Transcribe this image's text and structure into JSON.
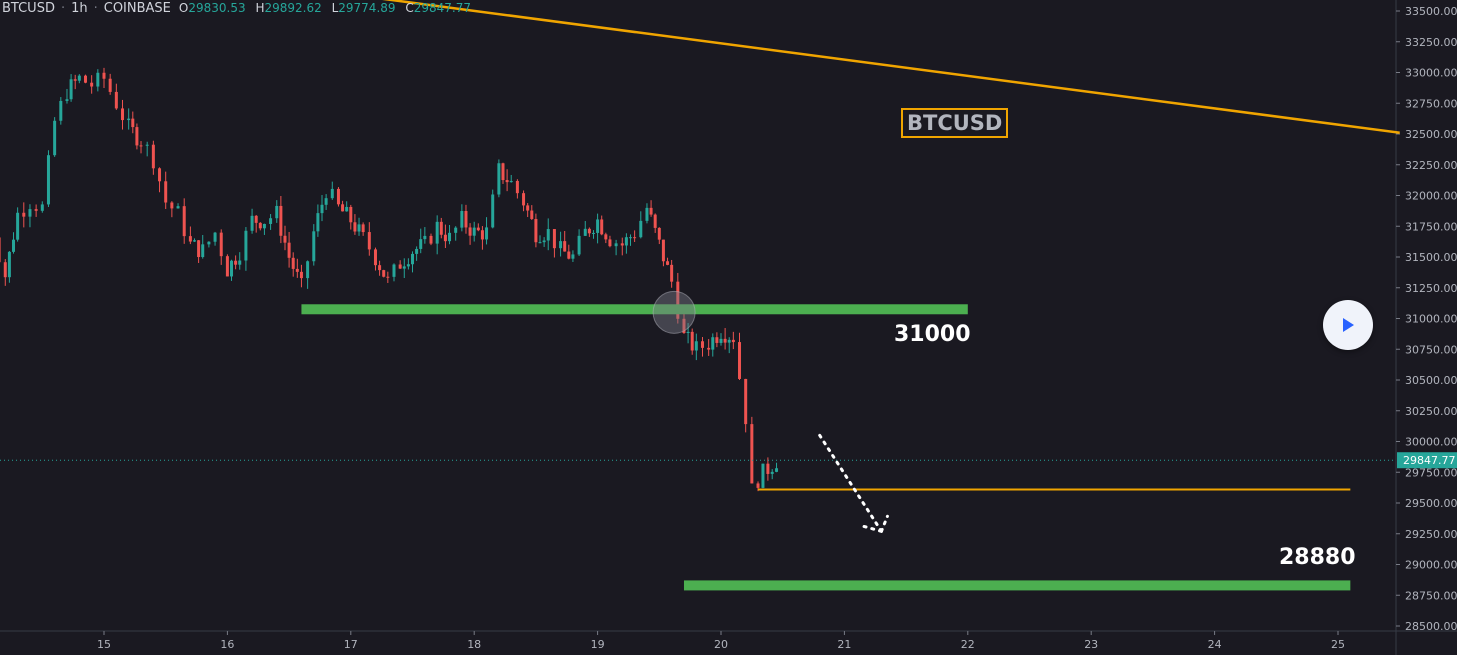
{
  "header": {
    "symbol": "BTCUSD",
    "interval": "1h",
    "exchange": "COINBASE",
    "open_key": "O",
    "open": "29830.53",
    "high_key": "H",
    "high": "29892.62",
    "low_key": "L",
    "low": "29774.89",
    "close_key": "C",
    "close": "29847.77"
  },
  "colors": {
    "background": "#1a1921",
    "bullish": "#26a69a",
    "bearish": "#ef5350",
    "support": "#4caf50",
    "trendline": "#f0a500",
    "price_label_bg": "#26a69a"
  },
  "annotations": {
    "symbol_box": "BTCUSD",
    "level_high_label": "31000",
    "level_low_label": "28880"
  },
  "controls": {
    "play_icon": "play-icon"
  },
  "chart_data": {
    "type": "candlestick",
    "ylim": [
      28400,
      33600
    ],
    "y_ticks": [
      "33500.00",
      "33250.00",
      "33000.00",
      "32750.00",
      "32500.00",
      "32250.00",
      "32000.00",
      "31750.00",
      "31500.00",
      "31250.00",
      "31000.00",
      "30750.00",
      "30500.00",
      "30250.00",
      "30000.00",
      "29750.00",
      "29500.00",
      "29250.00",
      "29000.00",
      "28750.00",
      "28500.00"
    ],
    "x_ticks": [
      "15",
      "16",
      "17",
      "18",
      "19",
      "20",
      "21",
      "22",
      "23",
      "24",
      "25"
    ],
    "current_price": "29847.77",
    "close_path": [
      [
        14.0,
        31550
      ],
      [
        14.1,
        31700
      ],
      [
        14.2,
        31350
      ],
      [
        14.3,
        31850
      ],
      [
        14.4,
        31950
      ],
      [
        14.5,
        31900
      ],
      [
        14.6,
        32600
      ],
      [
        14.7,
        32850
      ],
      [
        14.8,
        32950
      ],
      [
        14.9,
        32900
      ],
      [
        15.0,
        32950
      ],
      [
        15.1,
        32750
      ],
      [
        15.2,
        32550
      ],
      [
        15.3,
        32450
      ],
      [
        15.4,
        32300
      ],
      [
        15.5,
        31950
      ],
      [
        15.6,
        31850
      ],
      [
        15.7,
        31600
      ],
      [
        15.8,
        31550
      ],
      [
        15.9,
        31700
      ],
      [
        16.0,
        31400
      ],
      [
        16.1,
        31550
      ],
      [
        16.2,
        31800
      ],
      [
        16.3,
        31800
      ],
      [
        16.4,
        31850
      ],
      [
        16.5,
        31500
      ],
      [
        16.6,
        31250
      ],
      [
        16.7,
        31700
      ],
      [
        16.8,
        32050
      ],
      [
        16.9,
        31900
      ],
      [
        17.0,
        31800
      ],
      [
        17.1,
        31650
      ],
      [
        17.2,
        31500
      ],
      [
        17.3,
        31300
      ],
      [
        17.4,
        31450
      ],
      [
        17.5,
        31550
      ],
      [
        17.6,
        31600
      ],
      [
        17.7,
        31750
      ],
      [
        17.8,
        31650
      ],
      [
        17.9,
        31800
      ],
      [
        18.0,
        31700
      ],
      [
        18.1,
        31700
      ],
      [
        18.2,
        32200
      ],
      [
        18.3,
        32100
      ],
      [
        18.4,
        31950
      ],
      [
        18.5,
        31700
      ],
      [
        18.6,
        31700
      ],
      [
        18.7,
        31550
      ],
      [
        18.8,
        31500
      ],
      [
        18.9,
        31700
      ],
      [
        19.0,
        31800
      ],
      [
        19.1,
        31650
      ],
      [
        19.2,
        31600
      ],
      [
        19.3,
        31700
      ],
      [
        19.4,
        31900
      ],
      [
        19.5,
        31600
      ],
      [
        19.6,
        31300
      ],
      [
        19.7,
        30850
      ],
      [
        19.8,
        30750
      ],
      [
        19.9,
        30800
      ],
      [
        20.0,
        30900
      ],
      [
        20.1,
        30850
      ],
      [
        20.2,
        30200
      ],
      [
        20.25,
        29600
      ],
      [
        20.3,
        29700
      ],
      [
        20.38,
        29780
      ],
      [
        20.45,
        29848
      ]
    ],
    "support_levels": [
      {
        "label": "31000",
        "price": 31075,
        "x_start": 16.6,
        "x_end": 22.0
      },
      {
        "label": "28880",
        "price": 28830,
        "x_start": 19.7,
        "x_end": 25.1
      }
    ],
    "horizontal_line": {
      "price": 29610,
      "x_start": 20.3,
      "x_end": 25.1
    },
    "trendline": {
      "start": [
        17.1,
        33620
      ],
      "end": [
        25.5,
        32510
      ]
    },
    "dotted_arrow": {
      "start": [
        20.8,
        30050
      ],
      "end": [
        21.3,
        29270
      ]
    }
  }
}
